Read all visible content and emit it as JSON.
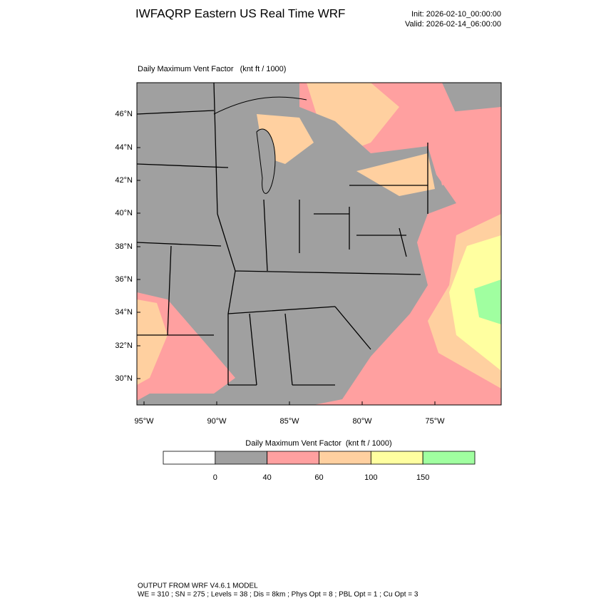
{
  "header": {
    "title": "IWFAQRP Eastern US Real Time WRF",
    "init": "Init: 2026-02-10_00:00:00",
    "valid": "Valid: 2026-02-14_06:00:00"
  },
  "map": {
    "title": "Daily Maximum Vent Factor   (knt ft / 1000)",
    "lat_labels": [
      "46°N",
      "44°N",
      "42°N",
      "40°N",
      "38°N",
      "36°N",
      "34°N",
      "32°N",
      "30°N"
    ],
    "lon_labels": [
      "95°W",
      "90°W",
      "85°W",
      "80°W",
      "75°W"
    ]
  },
  "colorbar": {
    "title": "Daily Maximum Vent Factor  (knt ft / 1000)",
    "labels": [
      0,
      40,
      60,
      100,
      150
    ],
    "colors": [
      "#ffffff",
      "#a0a0a0",
      "#ffa0a0",
      "#ffd0a0",
      "#ffffa0",
      "#a0ffa0"
    ]
  },
  "footer": {
    "line1": "OUTPUT FROM WRF V4.6.1 MODEL",
    "line2": "WE = 310 ; SN = 275 ; Levels = 38 ; Dis = 8km ; Phys Opt = 8 ; PBL Opt = 1 ; Cu Opt = 3"
  }
}
